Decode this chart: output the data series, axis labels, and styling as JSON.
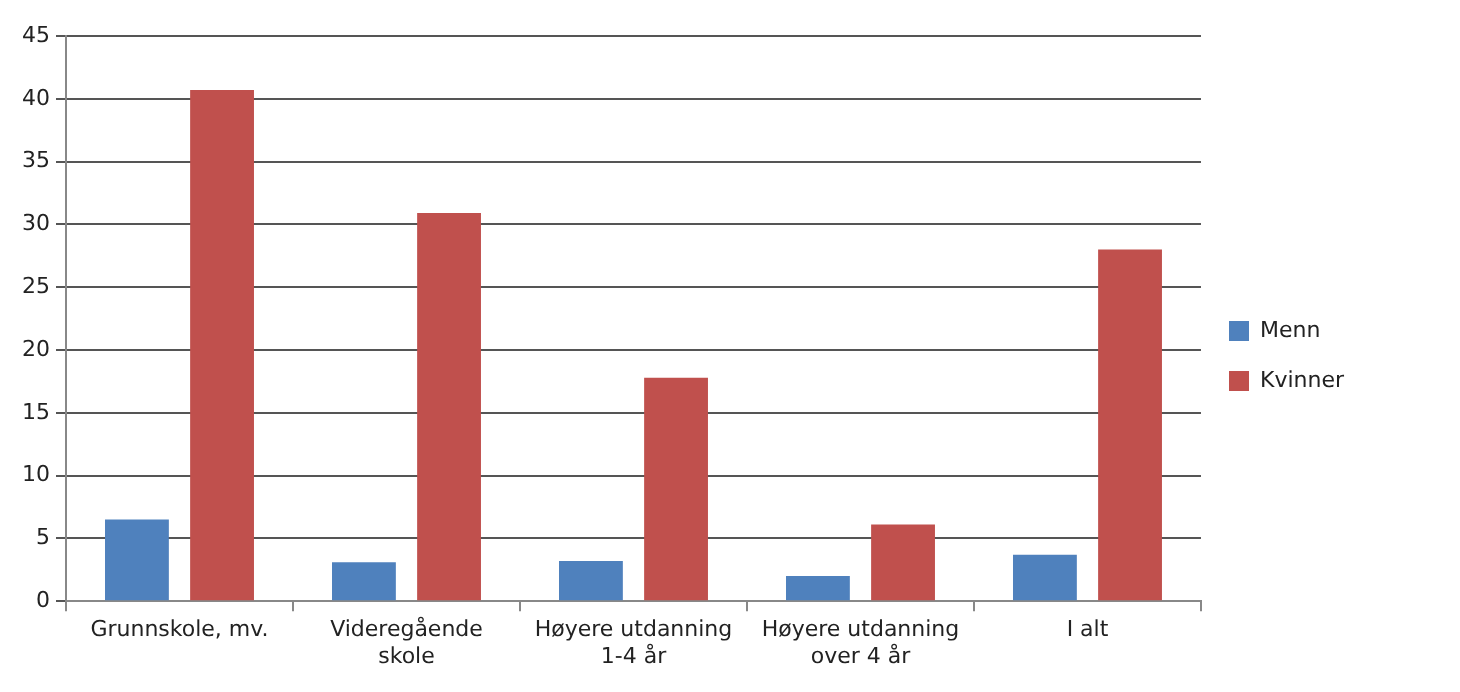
{
  "chart_data": {
    "type": "bar",
    "categories": [
      "Grunnskole, mv.",
      "Videregående skole",
      "Høyere utdanning 1-4 år",
      "Høyere utdanning over 4 år",
      "I alt"
    ],
    "series": [
      {
        "name": "Menn",
        "color": "#4f81bd",
        "values": [
          6.5,
          3.1,
          3.2,
          2.0,
          3.7
        ]
      },
      {
        "name": "Kvinner",
        "color": "#c0504d",
        "values": [
          40.7,
          30.9,
          17.8,
          6.1,
          28.0
        ]
      }
    ],
    "ylim": [
      0,
      45
    ],
    "yticks": [
      0,
      5,
      10,
      15,
      20,
      25,
      30,
      35,
      40,
      45
    ],
    "grid": "y",
    "legend": "right"
  }
}
